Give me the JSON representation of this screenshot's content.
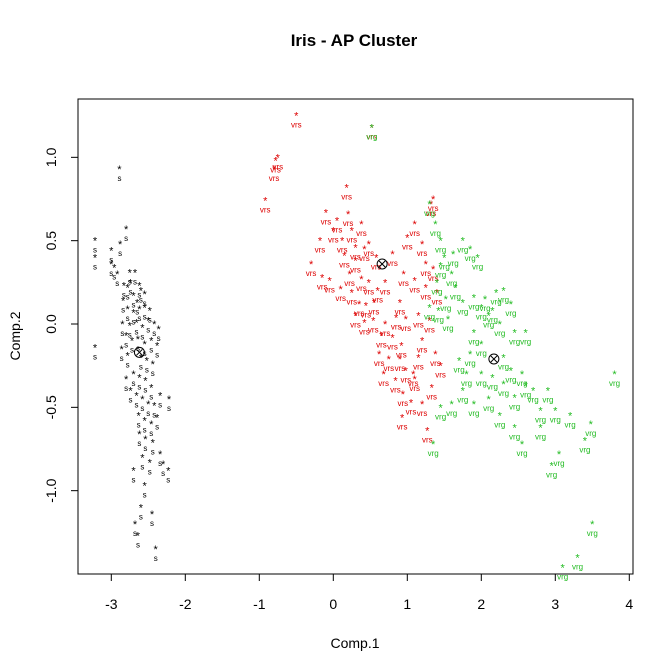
{
  "chart_data": {
    "type": "scatter",
    "title": "Iris - AP Cluster",
    "xlabel": "Comp.1",
    "ylabel": "Comp.2",
    "xlim": [
      -3.45,
      4.05
    ],
    "ylim": [
      -1.5,
      1.35
    ],
    "xticks": [
      "-3",
      "-2",
      "-1",
      "0",
      "1",
      "2",
      "3",
      "4"
    ],
    "xtick_values": [
      -3,
      -2,
      -1,
      0,
      1,
      2,
      3,
      4
    ],
    "yticks": [
      "-1.0",
      "-0.5",
      "0.0",
      "0.5",
      "1.0"
    ],
    "ytick_values": [
      -1.0,
      -0.5,
      0.0,
      0.5,
      1.0
    ],
    "grid": false,
    "marker": "*",
    "series": [
      {
        "label": "s",
        "color": "#000000",
        "exemplar": [
          -2.62,
          -0.17
        ],
        "points": [
          [
            -2.89,
            0.93
          ],
          [
            -2.88,
            0.48
          ],
          [
            -2.8,
            0.57
          ],
          [
            -3.22,
            0.5
          ],
          [
            -3.22,
            0.4
          ],
          [
            -3.0,
            0.44
          ],
          [
            -3.0,
            0.36
          ],
          [
            -2.96,
            0.34
          ],
          [
            -2.92,
            0.3
          ],
          [
            -2.75,
            0.31
          ],
          [
            -2.83,
            0.23
          ],
          [
            -2.78,
            0.22
          ],
          [
            -2.74,
            0.25
          ],
          [
            -2.68,
            0.31
          ],
          [
            -2.62,
            0.23
          ],
          [
            -2.6,
            0.2
          ],
          [
            -2.7,
            0.17
          ],
          [
            -2.84,
            0.14
          ],
          [
            -2.65,
            0.13
          ],
          [
            -2.55,
            0.18
          ],
          [
            -2.78,
            0.09
          ],
          [
            -2.7,
            0.07
          ],
          [
            -2.62,
            0.09
          ],
          [
            -2.55,
            0.1
          ],
          [
            -2.48,
            0.08
          ],
          [
            -2.85,
            0.0
          ],
          [
            -2.75,
            -0.01
          ],
          [
            -2.66,
            0.01
          ],
          [
            -2.58,
            -0.02
          ],
          [
            -2.5,
            0.02
          ],
          [
            -2.42,
            0.0
          ],
          [
            -2.36,
            -0.03
          ],
          [
            -2.8,
            -0.07
          ],
          [
            -2.72,
            -0.1
          ],
          [
            -2.64,
            -0.09
          ],
          [
            -2.55,
            -0.12
          ],
          [
            -2.46,
            -0.1
          ],
          [
            -2.38,
            -0.13
          ],
          [
            -3.22,
            -0.14
          ],
          [
            -2.86,
            -0.15
          ],
          [
            -2.78,
            -0.19
          ],
          [
            -2.6,
            -0.2
          ],
          [
            -2.52,
            -0.22
          ],
          [
            -2.44,
            -0.24
          ],
          [
            -2.7,
            -0.3
          ],
          [
            -2.62,
            -0.32
          ],
          [
            -2.54,
            -0.34
          ],
          [
            -2.46,
            -0.38
          ],
          [
            -2.8,
            -0.33
          ],
          [
            -2.74,
            -0.4
          ],
          [
            -2.66,
            -0.43
          ],
          [
            -2.58,
            -0.45
          ],
          [
            -2.5,
            -0.48
          ],
          [
            -2.42,
            -0.49
          ],
          [
            -2.34,
            -0.43
          ],
          [
            -2.63,
            -0.55
          ],
          [
            -2.55,
            -0.58
          ],
          [
            -2.46,
            -0.6
          ],
          [
            -2.38,
            -0.56
          ],
          [
            -2.22,
            -0.45
          ],
          [
            -2.62,
            -0.66
          ],
          [
            -2.54,
            -0.69
          ],
          [
            -2.44,
            -0.71
          ],
          [
            -2.58,
            -0.8
          ],
          [
            -2.48,
            -0.83
          ],
          [
            -2.34,
            -0.78
          ],
          [
            -2.3,
            -0.84
          ],
          [
            -2.23,
            -0.88
          ],
          [
            -2.7,
            -0.88
          ],
          [
            -2.6,
            -1.1
          ],
          [
            -2.68,
            -1.2
          ],
          [
            -2.64,
            -1.27
          ],
          [
            -2.4,
            -1.35
          ],
          [
            -2.45,
            -1.14
          ],
          [
            -2.55,
            -0.97
          ]
        ]
      },
      {
        "label": "vrs",
        "color": "#dd0000",
        "exemplar": [
          0.66,
          0.36
        ],
        "points": [
          [
            -0.5,
            1.25
          ],
          [
            -0.75,
            1.0
          ],
          [
            -0.78,
            0.98
          ],
          [
            -0.8,
            0.93
          ],
          [
            -0.92,
            0.74
          ],
          [
            -0.3,
            0.36
          ],
          [
            -0.15,
            0.28
          ],
          [
            -0.05,
            0.26
          ],
          [
            0.18,
            0.82
          ],
          [
            0.2,
            0.66
          ],
          [
            -0.1,
            0.67
          ],
          [
            0.05,
            0.62
          ],
          [
            0.0,
            0.56
          ],
          [
            -0.18,
            0.5
          ],
          [
            0.12,
            0.5
          ],
          [
            0.25,
            0.56
          ],
          [
            0.38,
            0.6
          ],
          [
            0.3,
            0.46
          ],
          [
            0.15,
            0.41
          ],
          [
            0.3,
            0.38
          ],
          [
            0.42,
            0.45
          ],
          [
            0.48,
            0.48
          ],
          [
            0.58,
            0.4
          ],
          [
            0.8,
            0.42
          ],
          [
            0.95,
            0.3
          ],
          [
            0.22,
            0.3
          ],
          [
            0.38,
            0.27
          ],
          [
            0.48,
            0.25
          ],
          [
            0.6,
            0.2
          ],
          [
            0.7,
            0.25
          ],
          [
            0.1,
            0.21
          ],
          [
            0.25,
            0.19
          ],
          [
            0.35,
            0.12
          ],
          [
            0.44,
            0.11
          ],
          [
            0.55,
            0.13
          ],
          [
            0.9,
            0.13
          ],
          [
            0.3,
            0.05
          ],
          [
            0.42,
            0.01
          ],
          [
            0.54,
            0.02
          ],
          [
            0.7,
            0.0
          ],
          [
            0.85,
            0.04
          ],
          [
            0.98,
            0.03
          ],
          [
            0.65,
            -0.07
          ],
          [
            0.8,
            -0.08
          ],
          [
            0.92,
            -0.13
          ],
          [
            0.62,
            -0.18
          ],
          [
            0.75,
            -0.21
          ],
          [
            0.9,
            -0.21
          ],
          [
            0.68,
            -0.3
          ],
          [
            0.84,
            -0.34
          ],
          [
            0.98,
            -0.28
          ],
          [
            1.1,
            -0.33
          ],
          [
            0.94,
            -0.42
          ],
          [
            1.05,
            -0.47
          ],
          [
            1.2,
            -0.48
          ],
          [
            1.27,
            -0.64
          ],
          [
            1.45,
            -0.25
          ],
          [
            0.93,
            -0.56
          ],
          [
            1.08,
            -0.3
          ],
          [
            1.35,
            0.75
          ],
          [
            1.32,
            0.72
          ],
          [
            1.1,
            0.6
          ],
          [
            1.0,
            0.52
          ],
          [
            1.2,
            0.48
          ],
          [
            1.25,
            0.36
          ],
          [
            1.35,
            0.33
          ],
          [
            1.1,
            0.26
          ],
          [
            1.25,
            0.22
          ],
          [
            1.4,
            0.19
          ],
          [
            1.15,
            0.05
          ],
          [
            1.3,
            0.02
          ],
          [
            1.2,
            -0.1
          ],
          [
            1.38,
            -0.18
          ],
          [
            1.33,
            -0.38
          ],
          [
            0.52,
            1.18
          ],
          [
            1.15,
            -0.2
          ]
        ]
      },
      {
        "label": "vrg",
        "color": "#22bb22",
        "exemplar": [
          2.17,
          -0.21
        ],
        "points": [
          [
            0.52,
            1.18
          ],
          [
            1.3,
            0.72
          ],
          [
            1.38,
            0.6
          ],
          [
            1.45,
            0.5
          ],
          [
            1.5,
            0.4
          ],
          [
            1.62,
            0.42
          ],
          [
            1.75,
            0.5
          ],
          [
            1.85,
            0.45
          ],
          [
            1.45,
            0.35
          ],
          [
            1.6,
            0.3
          ],
          [
            1.4,
            0.25
          ],
          [
            1.52,
            0.15
          ],
          [
            1.42,
            0.08
          ],
          [
            1.3,
            0.1
          ],
          [
            1.55,
            0.03
          ],
          [
            1.75,
            0.13
          ],
          [
            1.9,
            0.16
          ],
          [
            2.05,
            0.15
          ],
          [
            2.2,
            0.19
          ],
          [
            2.3,
            0.2
          ],
          [
            2.4,
            0.12
          ],
          [
            2.1,
            0.05
          ],
          [
            2.0,
            0.1
          ],
          [
            2.25,
            0.0
          ],
          [
            2.45,
            -0.05
          ],
          [
            1.9,
            -0.05
          ],
          [
            2.6,
            -0.05
          ],
          [
            1.7,
            -0.22
          ],
          [
            1.85,
            -0.18
          ],
          [
            2.0,
            -0.12
          ],
          [
            2.3,
            -0.2
          ],
          [
            2.4,
            -0.28
          ],
          [
            2.55,
            -0.3
          ],
          [
            2.6,
            -0.37
          ],
          [
            2.7,
            -0.4
          ],
          [
            2.3,
            -0.36
          ],
          [
            2.45,
            -0.44
          ],
          [
            2.15,
            -0.32
          ],
          [
            2.0,
            -0.3
          ],
          [
            1.75,
            -0.4
          ],
          [
            1.6,
            -0.48
          ],
          [
            1.9,
            -0.48
          ],
          [
            2.1,
            -0.45
          ],
          [
            2.25,
            -0.55
          ],
          [
            2.45,
            -0.62
          ],
          [
            2.9,
            -0.4
          ],
          [
            2.8,
            -0.52
          ],
          [
            3.0,
            -0.52
          ],
          [
            3.2,
            -0.55
          ],
          [
            3.4,
            -0.7
          ],
          [
            3.48,
            -0.6
          ],
          [
            3.05,
            -0.78
          ],
          [
            3.8,
            -0.3
          ],
          [
            3.5,
            -1.2
          ],
          [
            3.3,
            -1.4
          ],
          [
            3.1,
            -1.46
          ],
          [
            2.95,
            -0.85
          ],
          [
            1.8,
            -0.3
          ],
          [
            2.8,
            -0.62
          ],
          [
            1.35,
            -0.72
          ],
          [
            1.45,
            -0.5
          ],
          [
            2.55,
            -0.72
          ],
          [
            1.65,
            0.22
          ],
          [
            1.95,
            0.4
          ],
          [
            2.15,
            0.08
          ]
        ]
      }
    ]
  }
}
